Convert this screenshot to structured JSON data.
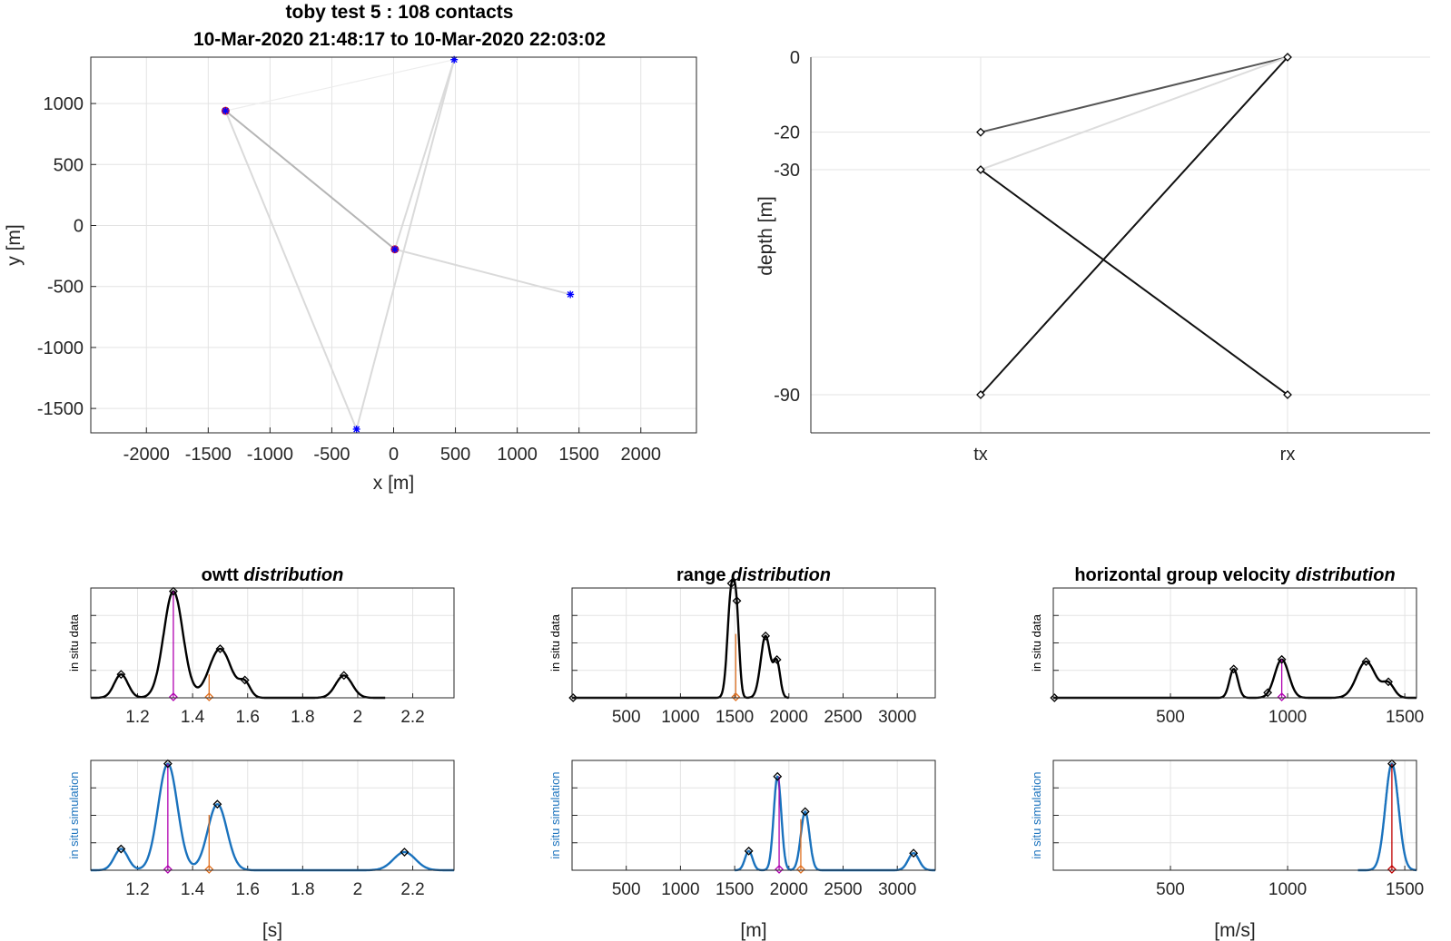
{
  "figure": {
    "title_line1": "toby test 5 : 108 contacts",
    "title_line2": "10-Mar-2020 21:48:17 to 10-Mar-2020 22:03:02"
  },
  "chart_data": [
    {
      "id": "map",
      "type": "scatter",
      "xlabel": "x [m]",
      "ylabel": "y [m]",
      "xlim": [
        -2450,
        2450
      ],
      "ylim": [
        -1700,
        1380
      ],
      "xticks": [
        -2000,
        -1500,
        -1000,
        -500,
        0,
        500,
        1000,
        1500,
        2000
      ],
      "yticks": [
        -1500,
        -1000,
        -500,
        0,
        500,
        1000
      ],
      "grid": true,
      "nodes": [
        {
          "x": -1360,
          "y": 940,
          "marker": "*",
          "color": "#0000ff",
          "receiver": true
        },
        {
          "x": 10,
          "y": -195,
          "marker": "*",
          "color": "#0000ff",
          "receiver": true
        },
        {
          "x": 490,
          "y": 1360,
          "marker": "*",
          "color": "#0000ff",
          "receiver": false
        },
        {
          "x": 1430,
          "y": -565,
          "marker": "*",
          "color": "#0000ff",
          "receiver": false
        },
        {
          "x": -300,
          "y": -1670,
          "marker": "*",
          "color": "#0000ff",
          "receiver": false
        }
      ],
      "links": [
        {
          "from": [
            -1360,
            940
          ],
          "to": [
            10,
            -195
          ],
          "weight": "medium"
        },
        {
          "from": [
            -1360,
            940
          ],
          "to": [
            -300,
            -1670
          ],
          "weight": "light"
        },
        {
          "from": [
            10,
            -195
          ],
          "to": [
            490,
            1360
          ],
          "weight": "light"
        },
        {
          "from": [
            10,
            -195
          ],
          "to": [
            1430,
            -565
          ],
          "weight": "light"
        },
        {
          "from": [
            490,
            1360
          ],
          "to": [
            -300,
            -1670
          ],
          "weight": "light"
        },
        {
          "from": [
            -1360,
            940
          ],
          "to": [
            490,
            1360
          ],
          "weight": "faint"
        }
      ]
    },
    {
      "id": "depth",
      "type": "line",
      "ylabel": "depth [m]",
      "categories": [
        "tx",
        "rx"
      ],
      "yticks": [
        0,
        -20,
        -30,
        -90
      ],
      "ylim": [
        -100,
        0
      ],
      "grid": true,
      "links": [
        {
          "tx": -20,
          "rx": 0,
          "color": "#555555"
        },
        {
          "tx": -30,
          "rx": 0,
          "color": "#dddddd"
        },
        {
          "tx": -30,
          "rx": -90,
          "color": "#111111"
        },
        {
          "tx": -90,
          "rx": 0,
          "color": "#111111"
        }
      ],
      "markers": [
        {
          "cat": "tx",
          "depth": -20
        },
        {
          "cat": "tx",
          "depth": -30
        },
        {
          "cat": "tx",
          "depth": -90
        },
        {
          "cat": "rx",
          "depth": 0
        },
        {
          "cat": "rx",
          "depth": -90
        }
      ]
    },
    {
      "id": "owtt",
      "type": "line",
      "title": "owtt",
      "title_suffix": "distribution",
      "xlabel": "[s]",
      "xlim": [
        1.03,
        2.35
      ],
      "xticks": [
        1.2,
        1.4,
        1.6,
        1.8,
        2,
        2.2
      ],
      "tick_labels": [
        "1.2",
        "1.4",
        "1.6",
        "1.8",
        "2",
        "2.2"
      ],
      "top": {
        "ylabel": "in situ data",
        "color": "#000000",
        "peaks": [
          {
            "mu": 1.14,
            "amp": 0.22,
            "sigma": 0.025
          },
          {
            "mu": 1.33,
            "amp": 1.0,
            "sigma": 0.035
          },
          {
            "mu": 1.5,
            "amp": 0.46,
            "sigma": 0.04
          },
          {
            "mu": 1.59,
            "amp": 0.13,
            "sigma": 0.02
          },
          {
            "mu": 1.95,
            "amp": 0.21,
            "sigma": 0.03
          }
        ],
        "markers": [
          1.14,
          1.33,
          1.5,
          1.59,
          1.95
        ],
        "stems": [
          {
            "x": 1.33,
            "h": 1.0,
            "color": "#b000b0"
          },
          {
            "x": 1.46,
            "h": 0.22,
            "color": "#e07020"
          }
        ],
        "xmax": 2.1
      },
      "bottom": {
        "ylabel": "in situ simulation",
        "color": "#1a72bd",
        "peaks": [
          {
            "mu": 1.14,
            "amp": 0.2,
            "sigma": 0.025
          },
          {
            "mu": 1.31,
            "amp": 1.0,
            "sigma": 0.035
          },
          {
            "mu": 1.49,
            "amp": 0.62,
            "sigma": 0.035
          },
          {
            "mu": 2.17,
            "amp": 0.17,
            "sigma": 0.04
          }
        ],
        "markers": [
          1.14,
          1.31,
          1.49,
          2.17
        ],
        "stems": [
          {
            "x": 1.31,
            "h": 1.0,
            "color": "#b000b0"
          },
          {
            "x": 1.46,
            "h": 0.52,
            "color": "#e07020"
          }
        ]
      }
    },
    {
      "id": "range",
      "type": "line",
      "title": "range",
      "title_suffix": "distribution",
      "xlabel": "[m]",
      "xlim": [
        0,
        3350
      ],
      "xticks": [
        500,
        1000,
        1500,
        2000,
        2500,
        3000
      ],
      "tick_labels": [
        "500",
        "1000",
        "1500",
        "2000",
        "2500",
        "3000"
      ],
      "top": {
        "ylabel": "in situ data",
        "color": "#000000",
        "peaks": [
          {
            "mu": 1470,
            "amp": 1.0,
            "sigma": 35
          },
          {
            "mu": 1520,
            "amp": 0.55,
            "sigma": 25
          },
          {
            "mu": 1785,
            "amp": 0.58,
            "sigma": 45
          },
          {
            "mu": 1890,
            "amp": 0.32,
            "sigma": 30
          }
        ],
        "markers": [
          10,
          1470,
          1520,
          1785,
          1890
        ],
        "stems": [
          {
            "x": 1510,
            "h": 0.6,
            "color": "#e07020"
          }
        ],
        "xmax": 2000
      },
      "bottom": {
        "ylabel": "in situ simulation",
        "color": "#1a72bd",
        "peaks": [
          {
            "mu": 1630,
            "amp": 0.18,
            "sigma": 35
          },
          {
            "mu": 1895,
            "amp": 0.88,
            "sigma": 35
          },
          {
            "mu": 2150,
            "amp": 0.55,
            "sigma": 40
          },
          {
            "mu": 3150,
            "amp": 0.16,
            "sigma": 50
          }
        ],
        "markers": [
          1630,
          1895,
          2150,
          3150
        ],
        "stems": [
          {
            "x": 1910,
            "h": 0.88,
            "color": "#b000b0"
          },
          {
            "x": 2110,
            "h": 0.48,
            "color": "#e07020"
          }
        ],
        "xmin": 1500
      }
    },
    {
      "id": "velocity",
      "type": "line",
      "title": "horizontal group velocity",
      "title_suffix": "distribution",
      "xlabel": "[m/s]",
      "xlim": [
        0,
        1550
      ],
      "xticks": [
        500,
        1000,
        1500
      ],
      "tick_labels": [
        "500",
        "1000",
        "1500"
      ],
      "top": {
        "ylabel": "in situ data",
        "color": "#000000",
        "peaks": [
          {
            "mu": 770,
            "amp": 0.27,
            "sigma": 18
          },
          {
            "mu": 975,
            "amp": 0.36,
            "sigma": 30
          },
          {
            "mu": 1335,
            "amp": 0.34,
            "sigma": 40
          },
          {
            "mu": 1430,
            "amp": 0.13,
            "sigma": 25
          }
        ],
        "markers": [
          5,
          770,
          915,
          975,
          1335,
          1430
        ],
        "stems": [
          {
            "x": 975,
            "h": 0.36,
            "color": "#b000b0"
          }
        ],
        "xmax": 1550
      },
      "bottom": {
        "ylabel": "in situ simulation",
        "color": "#1a72bd",
        "peaks": [
          {
            "mu": 1445,
            "amp": 1.0,
            "sigma": 28
          }
        ],
        "markers": [
          1445
        ],
        "stems": [
          {
            "x": 1445,
            "h": 1.0,
            "color": "#c00000"
          }
        ],
        "xmin": 1300
      }
    }
  ]
}
